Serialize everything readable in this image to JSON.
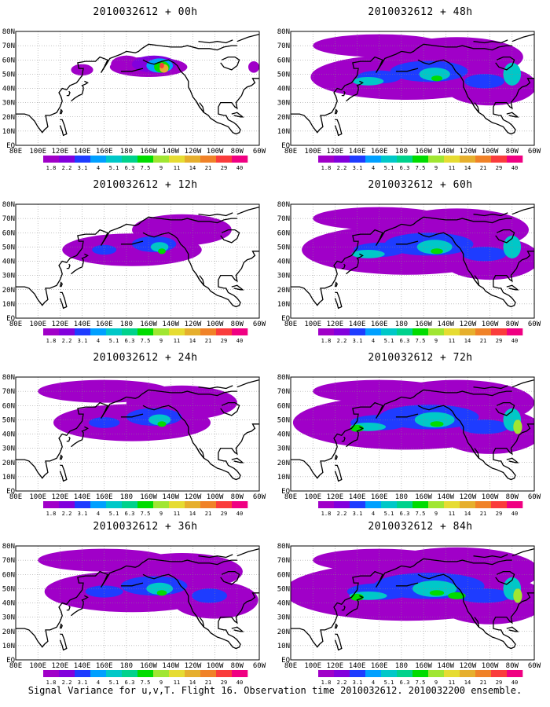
{
  "panels": [
    {
      "title": "2010032612 + 00h",
      "spread": 0
    },
    {
      "title": "2010032612 + 12h",
      "spread": 1
    },
    {
      "title": "2010032612 + 24h",
      "spread": 2
    },
    {
      "title": "2010032612 + 36h",
      "spread": 3
    },
    {
      "title": "2010032612 + 48h",
      "spread": 4
    },
    {
      "title": "2010032612 + 60h",
      "spread": 5
    },
    {
      "title": "2010032612 + 72h",
      "spread": 6
    },
    {
      "title": "2010032612 + 84h",
      "spread": 7
    }
  ],
  "lat_labels": [
    "80N",
    "70N",
    "60N",
    "50N",
    "40N",
    "30N",
    "20N",
    "10N",
    "EQ"
  ],
  "lon_labels": [
    "80E",
    "100E",
    "120E",
    "140E",
    "160E",
    "180",
    "160W",
    "140W",
    "120W",
    "100W",
    "80W",
    "60W"
  ],
  "colorbar": {
    "labels": [
      "1.8",
      "2.2",
      "3.1",
      "4",
      "5.1",
      "6.3",
      "7.5",
      "9",
      "11",
      "14",
      "21",
      "29",
      "40"
    ],
    "colors": [
      "#a000c8",
      "#8200dc",
      "#1e3cff",
      "#00a0ff",
      "#00c8c8",
      "#00d28c",
      "#00dc00",
      "#a0e632",
      "#e6dc32",
      "#e6af2d",
      "#f08228",
      "#fa3c3c",
      "#f00082"
    ]
  },
  "caption": "Signal Variance for u,v,T. Flight 16. Observation time 2010032612. 2010032200 ensemble."
}
